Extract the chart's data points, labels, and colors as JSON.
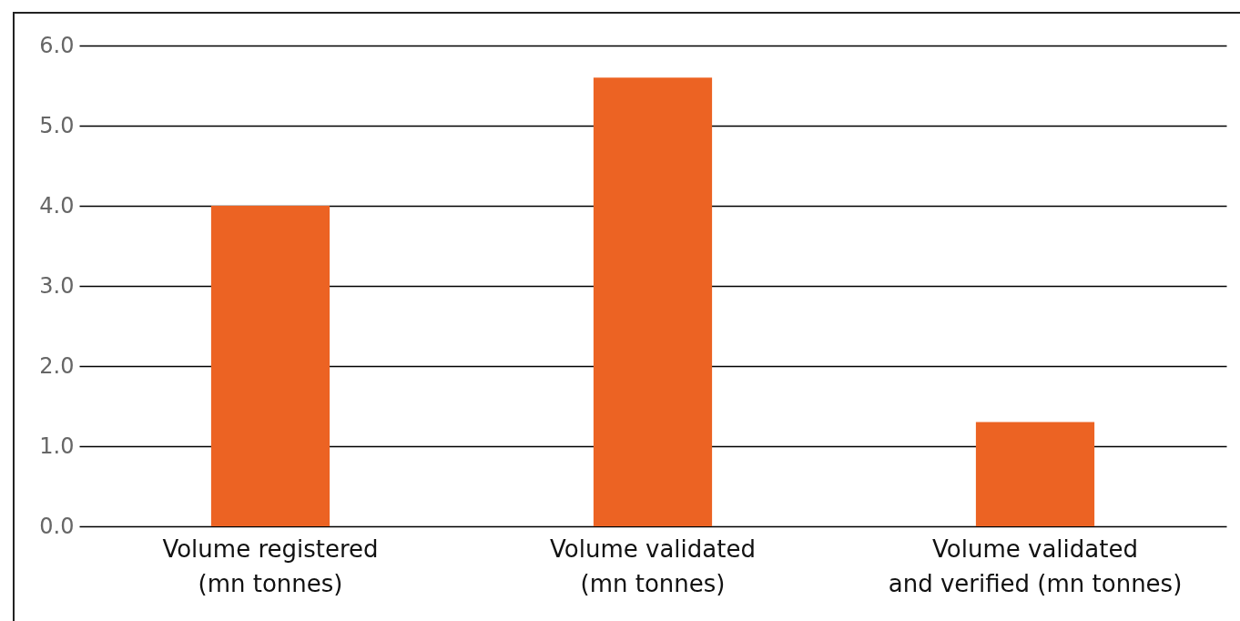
{
  "chart_data": {
    "type": "bar",
    "categories": [
      "Volume registered (mn tonnes)",
      "Volume validated (mn tonnes)",
      "Volume validated and verified (mn tonnes)"
    ],
    "values": [
      4.0,
      5.6,
      1.3
    ],
    "color": "#ec6323",
    "ylim": [
      0,
      6
    ],
    "yticks": [
      {
        "value": 0,
        "label": "0.0"
      },
      {
        "value": 1,
        "label": "1.0"
      },
      {
        "value": 2,
        "label": "2.0"
      },
      {
        "value": 3,
        "label": "3.0"
      },
      {
        "value": 4,
        "label": "4.0"
      },
      {
        "value": 5,
        "label": "5.0"
      },
      {
        "value": 6,
        "label": "6.0"
      }
    ],
    "grid": "y"
  }
}
